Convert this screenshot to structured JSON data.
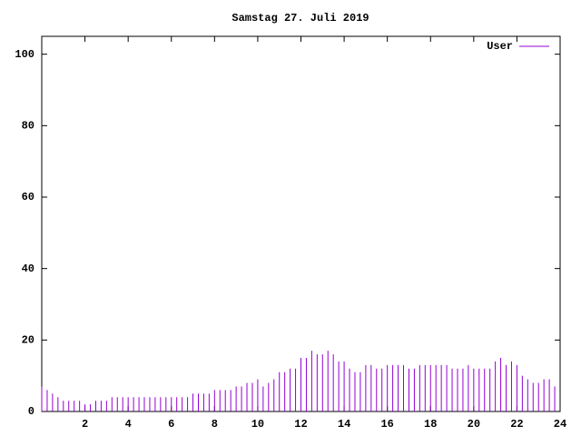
{
  "chart_data": {
    "type": "impulse",
    "title": "Samstag 27. Juli 2019",
    "x": [
      0,
      0.25,
      0.5,
      0.75,
      1,
      1.25,
      1.5,
      1.75,
      2,
      2.25,
      2.5,
      2.75,
      3,
      3.25,
      3.5,
      3.75,
      4,
      4.25,
      4.5,
      4.75,
      5,
      5.25,
      5.5,
      5.75,
      6,
      6.25,
      6.5,
      6.75,
      7,
      7.25,
      7.5,
      7.75,
      8,
      8.25,
      8.5,
      8.75,
      9,
      9.25,
      9.5,
      9.75,
      10,
      10.25,
      10.5,
      10.75,
      11,
      11.25,
      11.5,
      11.75,
      12,
      12.25,
      12.5,
      12.75,
      13,
      13.25,
      13.5,
      13.75,
      14,
      14.25,
      14.5,
      14.75,
      15,
      15.25,
      15.5,
      15.75,
      16,
      16.25,
      16.5,
      16.75,
      17,
      17.25,
      17.5,
      17.75,
      18,
      18.25,
      18.5,
      18.75,
      19,
      19.25,
      19.5,
      19.75,
      20,
      20.25,
      20.5,
      20.75,
      21,
      21.25,
      21.5,
      21.75,
      22,
      22.25,
      22.5,
      22.75,
      23,
      23.25,
      23.5,
      23.75
    ],
    "series": [
      {
        "name": "User",
        "color": "#9400d3",
        "values": [
          7,
          6,
          5,
          4,
          3,
          3,
          3,
          3,
          2,
          2,
          3,
          3,
          3,
          4,
          4,
          4,
          4,
          4,
          4,
          4,
          4,
          4,
          4,
          4,
          4,
          4,
          4,
          4,
          5,
          5,
          5,
          5,
          6,
          6,
          6,
          6,
          7,
          7,
          8,
          8,
          9,
          7,
          8,
          9,
          11,
          11,
          12,
          12,
          15,
          15,
          17,
          16,
          16,
          17,
          16,
          14,
          14,
          12,
          11,
          11,
          13,
          13,
          12,
          12,
          13,
          13,
          13,
          13,
          12,
          12,
          13,
          13,
          13,
          13,
          13,
          13,
          12,
          12,
          12,
          13,
          12,
          12,
          12,
          12,
          14,
          15,
          13,
          14,
          13,
          10,
          9,
          8,
          8,
          9,
          9,
          7
        ]
      }
    ],
    "xlim": [
      0,
      24
    ],
    "xticks": [
      2,
      4,
      6,
      8,
      10,
      12,
      14,
      16,
      18,
      20,
      22,
      24
    ],
    "ylim": [
      0,
      105
    ],
    "yticks": [
      0,
      20,
      40,
      60,
      80,
      100
    ],
    "legend": "top-right"
  }
}
